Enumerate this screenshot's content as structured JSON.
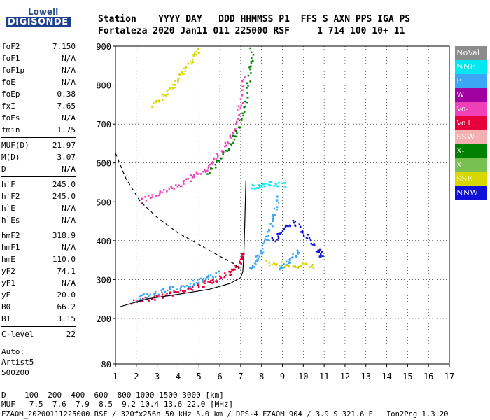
{
  "logo": {
    "top": "Lowell",
    "bottom": "DIGISONDE"
  },
  "header": {
    "line1": "Station    YYYY DAY   DDD HHMMSS P1  FFS S AXN PPS IGA PS",
    "line2": "Fortaleza 2020 Jan11 011 225000 RSF     1 714 100 10+ 11"
  },
  "params_groups": [
    [
      [
        "foF2",
        "7.150"
      ],
      [
        "foF1",
        "N/A"
      ],
      [
        "foF1p",
        "N/A"
      ],
      [
        "foE",
        "N/A"
      ],
      [
        "foEp",
        "0.38"
      ],
      [
        "fxI",
        "7.65"
      ],
      [
        "foEs",
        "N/A"
      ],
      [
        "fmin",
        "1.75"
      ]
    ],
    [
      [
        "MUF(D)",
        "21.97"
      ],
      [
        "M(D)",
        "3.07"
      ],
      [
        "D",
        "N/A"
      ]
    ],
    [
      [
        "h`F",
        "245.0"
      ],
      [
        "h`F2",
        "245.0"
      ],
      [
        "h`E",
        "N/A"
      ],
      [
        "h`Es",
        "N/A"
      ]
    ],
    [
      [
        "hmF2",
        "318.9"
      ],
      [
        "hmF1",
        "N/A"
      ],
      [
        "hmE",
        "110.0"
      ],
      [
        "yF2",
        "74.1"
      ],
      [
        "yF1",
        "N/A"
      ],
      [
        "yE",
        "20.0"
      ],
      [
        "B0",
        "66.2"
      ],
      [
        "B1",
        "3.15"
      ]
    ],
    [
      [
        "C-level",
        "22"
      ]
    ]
  ],
  "auto": [
    "Auto:",
    "Artist5",
    "500200"
  ],
  "legend": [
    {
      "label": "NoVal",
      "color": "#8c8c8c"
    },
    {
      "label": "NNE",
      "color": "#00e8f0"
    },
    {
      "label": "E",
      "color": "#3aa6f4"
    },
    {
      "label": "W",
      "color": "#a000a0"
    },
    {
      "label": "Vo-",
      "color": "#f040b8"
    },
    {
      "label": "Vo+",
      "color": "#e8003c"
    },
    {
      "label": "SSW",
      "color": "#f4b0b0"
    },
    {
      "label": "X-",
      "color": "#008000"
    },
    {
      "label": "X+",
      "color": "#78c050"
    },
    {
      "label": "SSE",
      "color": "#d8d800"
    },
    {
      "label": "NNW",
      "color": "#1010d8"
    }
  ],
  "footer": {
    "d_line": "D    100  200  400  600  800 1000 1500 3000 [km]",
    "muf_line": "MUF   7.5  7.6  7.9  8.5  9.2 10.4 13.6 22.0 [MHz]",
    "file_line": "FZAOM_20200111225000.RSF / 320fx256h 50 kHz 5.0 km / DPS-4 FZAOM 904 / 3.9 S 321.6 E   Ion2Png 1.3.20"
  },
  "chart_data": {
    "type": "scatter",
    "x_ticks": [
      1,
      2,
      3,
      4,
      5,
      6,
      7,
      8,
      9,
      10,
      11,
      12,
      13,
      14,
      15,
      16,
      17
    ],
    "y_ticks": [
      80,
      200,
      300,
      400,
      500,
      600,
      700,
      800,
      900
    ],
    "xlim": [
      1,
      17
    ],
    "ylim": [
      80,
      900
    ],
    "grid": true,
    "legend_placement": "right",
    "traces": [
      {
        "color": "#e8003c",
        "points": [
          [
            1.8,
            245
          ],
          [
            2.5,
            252
          ],
          [
            3.2,
            260
          ],
          [
            4.0,
            270
          ],
          [
            4.6,
            280
          ],
          [
            5.2,
            290
          ],
          [
            5.8,
            302
          ],
          [
            6.3,
            315
          ],
          [
            6.7,
            332
          ],
          [
            7.0,
            352
          ],
          [
            7.1,
            372
          ]
        ]
      },
      {
        "color": "#3aa6f4",
        "points": [
          [
            1.9,
            250
          ],
          [
            2.6,
            262
          ],
          [
            3.3,
            272
          ],
          [
            4.0,
            282
          ],
          [
            4.7,
            294
          ],
          [
            5.3,
            306
          ],
          [
            6.0,
            318
          ]
        ]
      },
      {
        "color": "#f040b8",
        "points": [
          [
            2.2,
            505
          ],
          [
            3.0,
            522
          ],
          [
            3.8,
            540
          ],
          [
            4.5,
            560
          ],
          [
            5.2,
            582
          ],
          [
            5.8,
            612
          ],
          [
            6.3,
            650
          ],
          [
            6.7,
            700
          ],
          [
            7.0,
            760
          ],
          [
            7.1,
            830
          ]
        ]
      },
      {
        "color": "#008000",
        "points": [
          [
            5.4,
            575
          ],
          [
            6.0,
            610
          ],
          [
            6.5,
            650
          ],
          [
            6.9,
            700
          ],
          [
            7.2,
            760
          ],
          [
            7.45,
            840
          ],
          [
            7.5,
            900
          ]
        ]
      },
      {
        "color": "#d8d800",
        "points": [
          [
            2.8,
            750
          ],
          [
            3.3,
            775
          ],
          [
            3.8,
            805
          ],
          [
            4.2,
            835
          ],
          [
            4.7,
            870
          ],
          [
            5.0,
            895
          ]
        ]
      },
      {
        "color": "#3aa6f4",
        "points": [
          [
            7.4,
            330
          ],
          [
            7.7,
            350
          ],
          [
            8.0,
            380
          ],
          [
            8.3,
            420
          ],
          [
            8.6,
            470
          ],
          [
            8.8,
            520
          ]
        ]
      },
      {
        "color": "#3aa6f4",
        "points": [
          [
            8.8,
            330
          ],
          [
            9.2,
            345
          ],
          [
            9.5,
            360
          ],
          [
            9.8,
            375
          ]
        ]
      },
      {
        "color": "#1010d8",
        "points": [
          [
            8.5,
            400
          ],
          [
            9.0,
            430
          ],
          [
            9.5,
            450
          ],
          [
            10.0,
            420
          ],
          [
            10.6,
            380
          ],
          [
            10.9,
            360
          ]
        ]
      },
      {
        "color": "#00e8f0",
        "points": [
          [
            7.5,
            540
          ],
          [
            8.0,
            545
          ],
          [
            8.5,
            550
          ],
          [
            9.2,
            545
          ]
        ]
      },
      {
        "color": "#d8d800",
        "points": [
          [
            8.2,
            345
          ],
          [
            9.0,
            340
          ],
          [
            9.8,
            338
          ],
          [
            10.6,
            336
          ]
        ]
      }
    ],
    "profile_solid": [
      [
        1.2,
        230
      ],
      [
        2.5,
        250
      ],
      [
        4.0,
        262
      ],
      [
        5.5,
        275
      ],
      [
        6.5,
        290
      ],
      [
        7.0,
        305
      ],
      [
        7.1,
        320
      ],
      [
        7.15,
        360
      ],
      [
        7.2,
        450
      ],
      [
        7.25,
        555
      ]
    ],
    "profile_dashed": [
      [
        1.0,
        625
      ],
      [
        1.5,
        560
      ],
      [
        2.2,
        500
      ],
      [
        3.0,
        460
      ],
      [
        4.0,
        420
      ],
      [
        5.0,
        390
      ],
      [
        6.0,
        360
      ],
      [
        6.7,
        340
      ],
      [
        7.0,
        325
      ]
    ]
  }
}
